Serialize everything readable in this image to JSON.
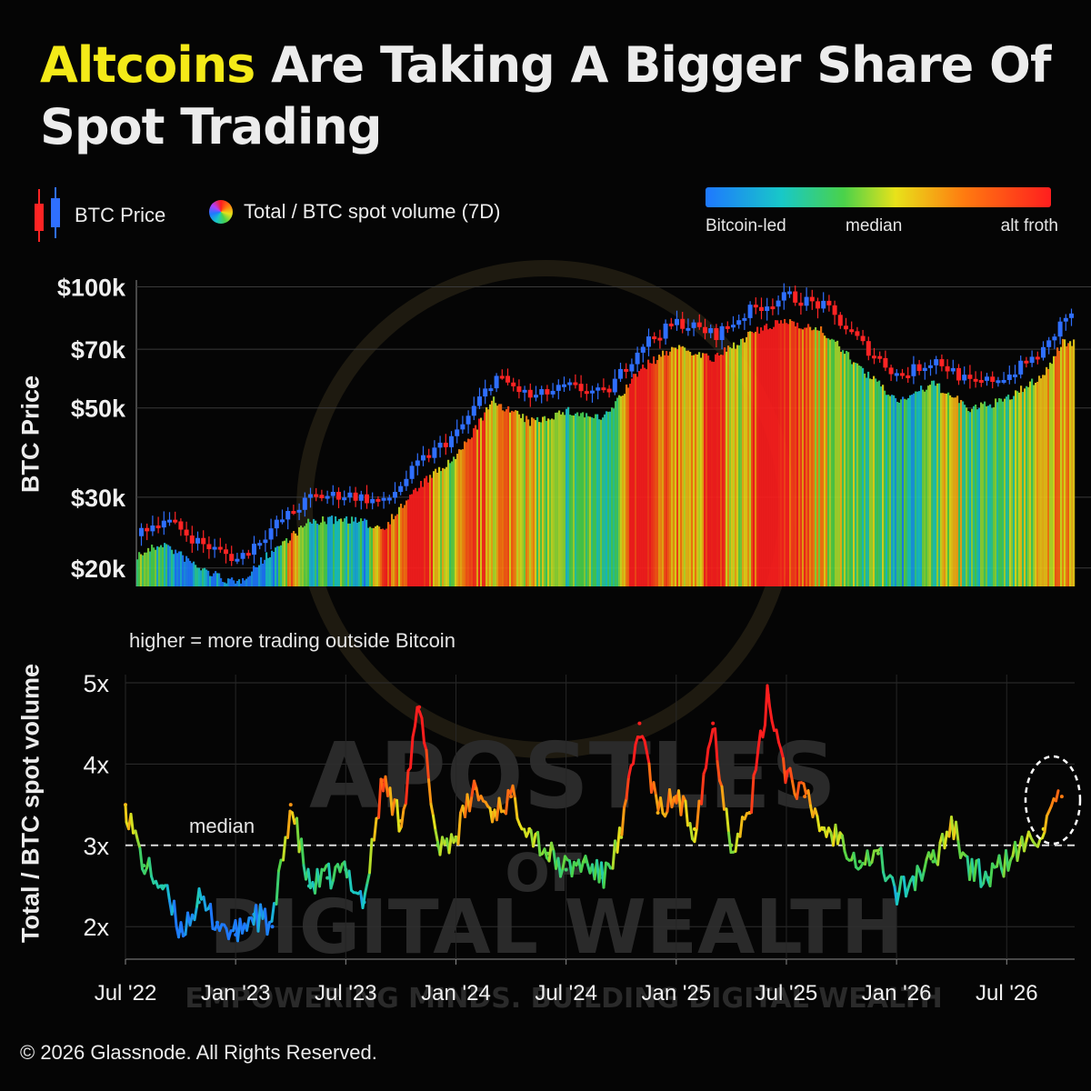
{
  "header": {
    "title_highlight": "Altcoins",
    "title_rest": " Are Taking A Bigger Share Of Spot Trading"
  },
  "legend": {
    "btc_price": "BTC Price",
    "ratio": "Total / BTC spot volume (7D)",
    "colorbar_left": "Bitcoin-led",
    "colorbar_mid": "median",
    "colorbar_right": "alt froth"
  },
  "watermark": {
    "line1": "APOSTLES",
    "line2": "OF",
    "line3": "DIGITAL WEALTH",
    "tagline": "EMPOWERING MINDS. BUILDING DIGITAL WEALTH"
  },
  "footer": {
    "copyright": "© 2026 Glassnode. All Rights Reserved."
  },
  "colors": {
    "highlight": "#f4ea18",
    "candle_up": "#2f6fff",
    "candle_down": "#ff2424",
    "scale": [
      "#1e78ff",
      "#18c8c8",
      "#4ad24a",
      "#e8e21a",
      "#ff7a10",
      "#ff1e1e"
    ]
  },
  "chart_data": [
    {
      "type": "line",
      "name": "price-panel",
      "ylabel": "BTC Price",
      "y_scale": "log",
      "yticks": [
        {
          "value": 20000,
          "label": "$20k"
        },
        {
          "value": 30000,
          "label": "$30k"
        },
        {
          "value": 50000,
          "label": "$50k"
        },
        {
          "value": 70000,
          "label": "$70k"
        },
        {
          "value": 100000,
          "label": "$100k"
        }
      ],
      "ylim": [
        18000,
        104000
      ],
      "grid": true,
      "x": [
        "2022-07",
        "2022-09",
        "2022-11",
        "2023-01",
        "2023-03",
        "2023-05",
        "2023-07",
        "2023-09",
        "2023-11",
        "2024-01",
        "2024-03",
        "2024-05",
        "2024-07",
        "2024-09",
        "2024-11",
        "2025-01",
        "2025-03",
        "2025-05",
        "2025-07",
        "2025-09",
        "2025-11",
        "2026-01",
        "2026-03",
        "2026-05",
        "2026-07",
        "2026-09",
        "2026-10"
      ],
      "series": [
        {
          "name": "BTC Price",
          "values": [
            24000,
            26500,
            23000,
            21000,
            25500,
            30000,
            30500,
            29000,
            37000,
            43500,
            60000,
            53000,
            56500,
            54000,
            72000,
            82000,
            76000,
            88000,
            95000,
            89000,
            72000,
            60000,
            66000,
            57000,
            60500,
            70000,
            84000
          ]
        }
      ]
    },
    {
      "type": "line",
      "name": "ratio-panel",
      "ylabel": "Total / BTC spot volume",
      "yticks": [
        {
          "value": 2,
          "label": "2x"
        },
        {
          "value": 3,
          "label": "3x"
        },
        {
          "value": 4,
          "label": "4x"
        },
        {
          "value": 5,
          "label": "5x"
        }
      ],
      "ylim": [
        1.6,
        5.1
      ],
      "median": 3.0,
      "median_label": "median",
      "annotation": "higher = more trading outside Bitcoin",
      "xticks": [
        "Jul '22",
        "Jan '23",
        "Jul '23",
        "Jan '24",
        "Jul '24",
        "Jan '25",
        "Jul '25",
        "Jan '26",
        "Jul '26"
      ],
      "x": [
        "2022-07",
        "2022-08",
        "2022-09",
        "2022-10",
        "2022-11",
        "2022-12",
        "2023-01",
        "2023-02",
        "2023-03",
        "2023-04",
        "2023-05",
        "2023-06",
        "2023-07",
        "2023-08",
        "2023-09",
        "2023-10",
        "2023-11",
        "2023-12",
        "2024-01",
        "2024-02",
        "2024-03",
        "2024-04",
        "2024-05",
        "2024-06",
        "2024-07",
        "2024-08",
        "2024-09",
        "2024-10",
        "2024-11",
        "2024-12",
        "2025-01",
        "2025-02",
        "2025-03",
        "2025-04",
        "2025-05",
        "2025-06",
        "2025-07",
        "2025-08",
        "2025-09",
        "2025-10",
        "2025-11",
        "2025-12",
        "2026-01",
        "2026-02",
        "2026-03",
        "2026-04",
        "2026-05",
        "2026-06",
        "2026-07",
        "2026-08",
        "2026-09",
        "2026-10"
      ],
      "series": [
        {
          "name": "Total / BTC spot volume (7D)",
          "values": [
            3.5,
            2.75,
            2.5,
            1.95,
            2.3,
            2.05,
            1.9,
            2.15,
            2.0,
            3.5,
            2.5,
            2.6,
            2.7,
            2.3,
            3.8,
            3.3,
            4.7,
            3.0,
            3.1,
            3.7,
            3.4,
            3.6,
            3.2,
            2.9,
            2.7,
            2.8,
            2.6,
            3.1,
            4.5,
            3.4,
            3.6,
            3.2,
            4.5,
            3.0,
            3.4,
            4.85,
            3.9,
            3.6,
            3.2,
            3.1,
            2.8,
            2.9,
            2.4,
            2.6,
            2.8,
            3.3,
            2.7,
            2.6,
            2.8,
            3.0,
            3.2,
            3.6
          ]
        }
      ]
    }
  ]
}
